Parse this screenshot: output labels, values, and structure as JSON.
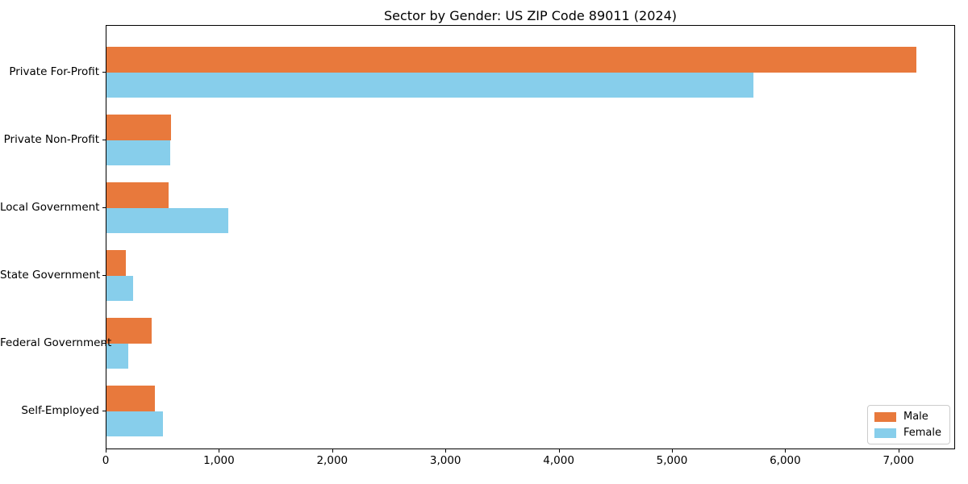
{
  "figure": {
    "background": "#ffffff",
    "axis_color": "#000000",
    "text_color": "#000000",
    "legend_border_color": "#cccccc"
  },
  "chart_data": {
    "type": "bar",
    "orientation": "horizontal",
    "title": "Sector by Gender: US ZIP Code 89011 (2024)",
    "xlabel": "",
    "ylabel": "",
    "categories": [
      "Private For-Profit",
      "Private Non-Profit",
      "Local Government",
      "State Government",
      "Federal Government",
      "Self-Employed"
    ],
    "series": [
      {
        "name": "Male",
        "color": "#e8793c",
        "values": [
          7150,
          572,
          548,
          170,
          400,
          425
        ]
      },
      {
        "name": "Female",
        "color": "#87ceeb",
        "values": [
          5710,
          563,
          1073,
          237,
          195,
          496
        ]
      }
    ],
    "xlim": [
      0,
      7500
    ],
    "xticks": {
      "values": [
        0,
        1000,
        2000,
        3000,
        4000,
        5000,
        6000,
        7000
      ],
      "labels": [
        "0",
        "1,000",
        "2,000",
        "3,000",
        "4,000",
        "5,000",
        "6,000",
        "7,000"
      ]
    },
    "grid": false,
    "legend_position": "lower-right"
  }
}
